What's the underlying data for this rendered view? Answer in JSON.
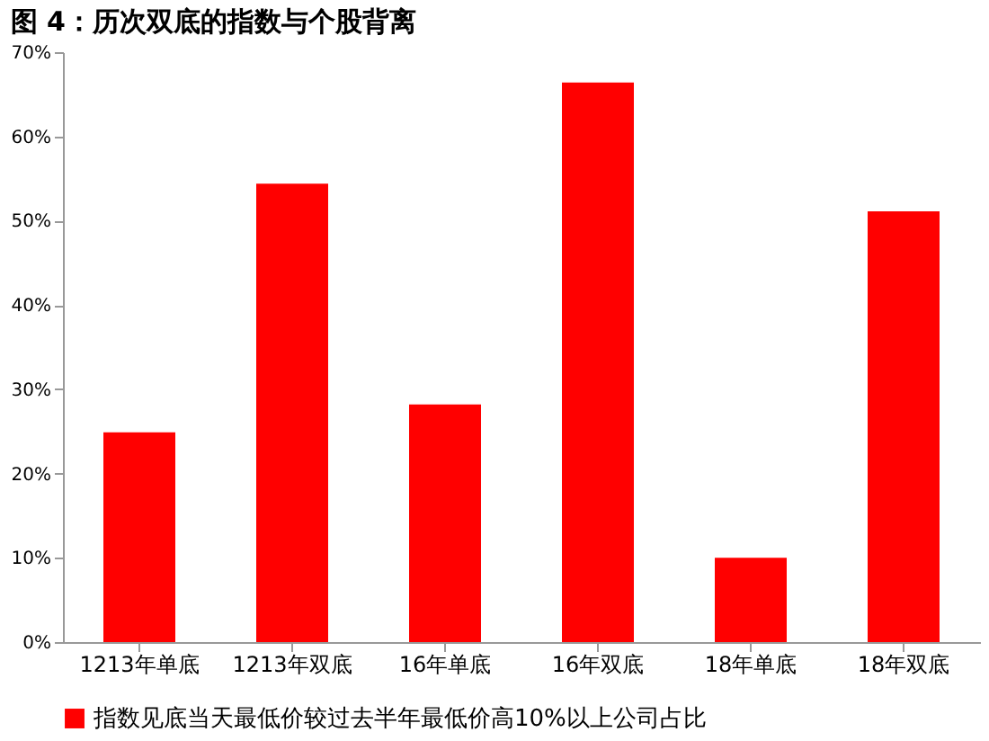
{
  "chart_data": {
    "type": "bar",
    "title": "图 4：历次双底的指数与个股背离",
    "categories": [
      "1213年单底",
      "1213年双底",
      "16年单底",
      "16年双底",
      "18年单底",
      "18年双底"
    ],
    "series": [
      {
        "name": "指数见底当天最低价较过去半年最低价高10%以上公司占比",
        "color": "#ff0000",
        "values": [
          24.9,
          54.4,
          28.2,
          66.4,
          10.0,
          51.1
        ]
      }
    ],
    "ylim": [
      0,
      70
    ],
    "yticks": [
      {
        "value": 0,
        "label": "0%"
      },
      {
        "value": 10,
        "label": "10%"
      },
      {
        "value": 20,
        "label": "20%"
      },
      {
        "value": 30,
        "label": "30%"
      },
      {
        "value": 40,
        "label": "40%"
      },
      {
        "value": 50,
        "label": "50%"
      },
      {
        "value": 60,
        "label": "60%"
      },
      {
        "value": 70,
        "label": "70%"
      }
    ],
    "grid": false,
    "legend": "bottom"
  }
}
